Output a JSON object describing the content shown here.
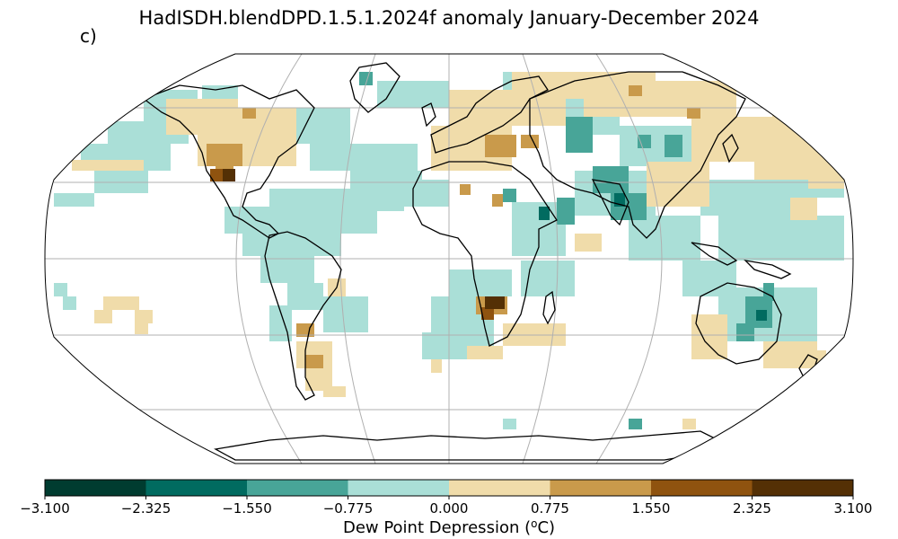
{
  "figure": {
    "title": "HadISDH.blendDPD.1.5.1.2024f anomaly January-December 2024",
    "panel_label": "c)"
  },
  "colorbar": {
    "label_text": "Dew Point Depression (",
    "label_sup": "o",
    "label_unit": "C)",
    "ticks": [
      "−3.100",
      "−2.325",
      "−1.550",
      "−0.775",
      "0.000",
      "0.775",
      "1.550",
      "2.325",
      "3.100"
    ],
    "colors": [
      "#003c30",
      "#016b60",
      "#48a598",
      "#aadfd7",
      "#f0dcaa",
      "#c99a4b",
      "#8f530f",
      "#543005"
    ]
  },
  "map": {
    "projection": "Robinson",
    "graticule": "30 degree",
    "coastlines": "black",
    "grid_cells": "5x5 degree anomaly"
  }
}
